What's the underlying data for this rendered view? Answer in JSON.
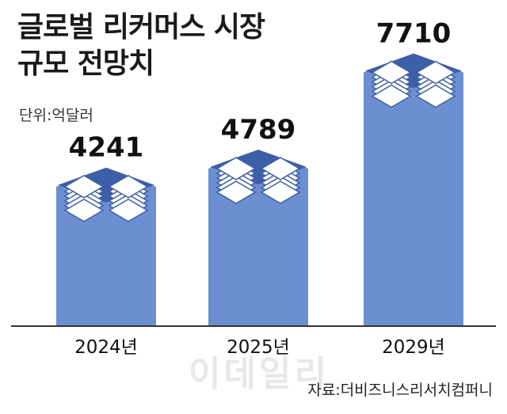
{
  "header": {
    "title_line1": "글로벌 리커머스 시장",
    "title_line2": "규모 전망치",
    "unit": "단위:억달러"
  },
  "footer": {
    "source": "자료:더비즈니스리서치컴퍼니",
    "watermark": "이데일리"
  },
  "colors": {
    "bar": "#6b8fd0",
    "box_top": "#3d5fa8",
    "sheet": "#ffffff",
    "axis": "#333333"
  },
  "chart_data": {
    "type": "bar",
    "title": "글로벌 리커머스 시장 규모 전망치",
    "unit": "단위:억달러",
    "categories": [
      "2024년",
      "2025년",
      "2029년"
    ],
    "values": [
      4241,
      4789,
      7710
    ],
    "value_labels": [
      "4241",
      "4789",
      "7710"
    ],
    "ylim": [
      0,
      8300
    ],
    "grid": false,
    "legend": "none"
  }
}
